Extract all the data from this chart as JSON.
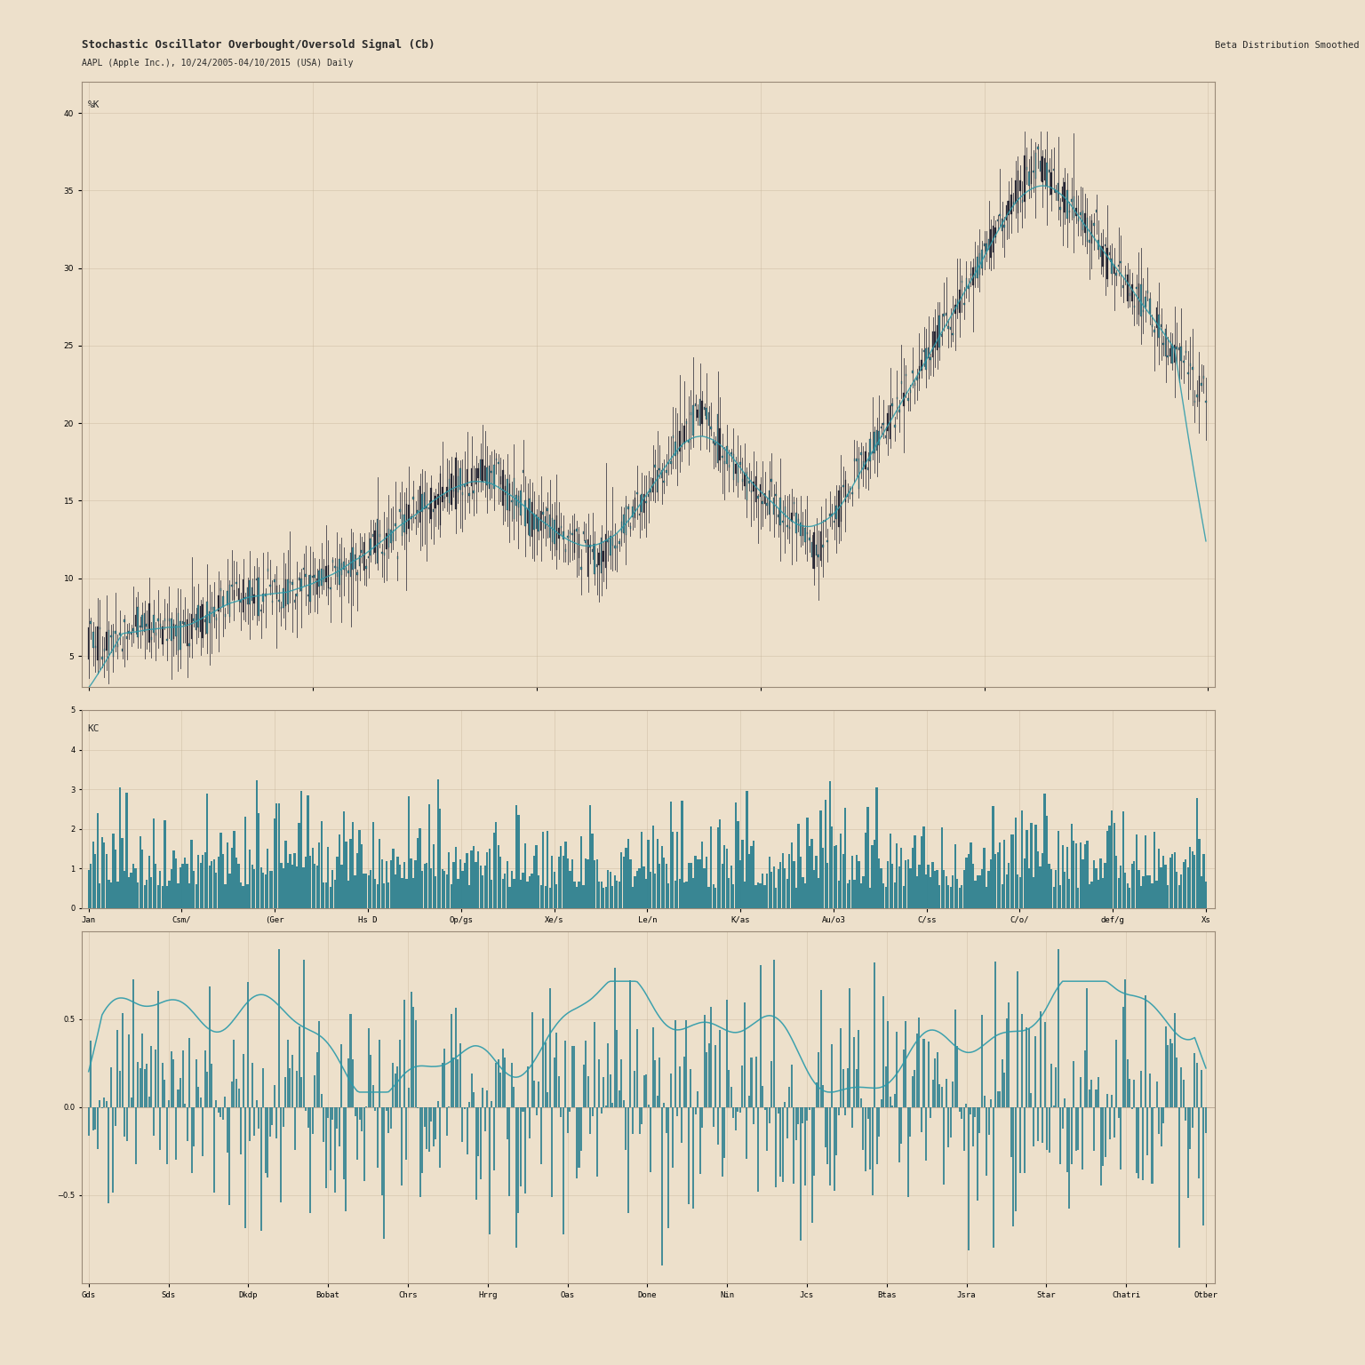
{
  "title": "Stochastic Oscillator Overbought/Oversold Signal (Cb)",
  "subtitle": "AAPL (Apple Inc.), 10/24/2005-04/10/2015 (USA) Daily",
  "legend_text": "Beta Distribution Smoothed Heuristic",
  "bg_color": "#ede0cb",
  "teal_color": "#2a7f8f",
  "dark_color": "#1a1a2a",
  "line_color": "#2a9aaa",
  "n_points": 500,
  "price_ylim": [
    3.0,
    42.0
  ],
  "volume_ylim": [
    0,
    4.5
  ],
  "stoch_ylim": [
    -1.0,
    1.0
  ],
  "x_labels_top": [
    "Jan",
    "Csm/",
    "(Ger",
    "Hs D",
    "Op/gs",
    "Xe/s",
    "Le/n",
    "K/as",
    "Au/o3",
    "C/ss",
    "C/o/",
    "def/g",
    "Xs"
  ],
  "x_labels_bottom": [
    "Gds",
    "Sds",
    "Dkdp",
    "Bobat",
    "Chrs",
    "Hrrg",
    "Oas",
    "Done",
    "Nin",
    "Jcs",
    "Btas",
    "Jsra",
    "Star",
    "Chatri",
    "Otber"
  ]
}
